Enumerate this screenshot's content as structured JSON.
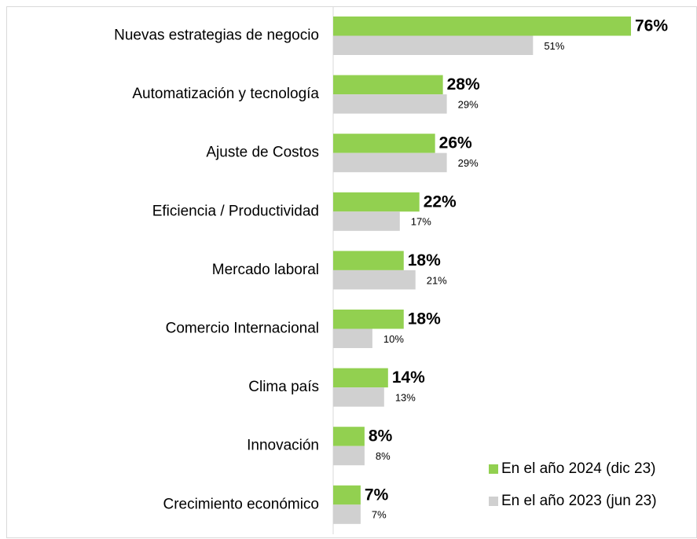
{
  "chart_data": {
    "type": "bar",
    "orientation": "horizontal",
    "categories": [
      "Nuevas estrategias de negocio",
      "Automatización y tecnología",
      "Ajuste de Costos",
      "Eficiencia / Productividad",
      "Mercado laboral",
      "Comercio Internacional",
      "Clima país",
      "Innovación",
      "Crecimiento económico"
    ],
    "series": [
      {
        "name": "En el año 2024 (dic 23)",
        "color": "#92d050",
        "values": [
          76,
          28,
          26,
          22,
          18,
          18,
          14,
          8,
          7
        ],
        "value_labels": [
          "76%",
          "28%",
          "26%",
          "22%",
          "18%",
          "18%",
          "14%",
          "8%",
          "7%"
        ]
      },
      {
        "name": "En el año 2023 (jun 23)",
        "color": "#d0d0d0",
        "values": [
          51,
          29,
          29,
          17,
          21,
          10,
          13,
          8,
          7
        ],
        "value_labels": [
          "51%",
          "29%",
          "29%",
          "17%",
          "21%",
          "10%",
          "13%",
          "8%",
          "7%"
        ]
      }
    ],
    "legend": "bottom-right"
  }
}
